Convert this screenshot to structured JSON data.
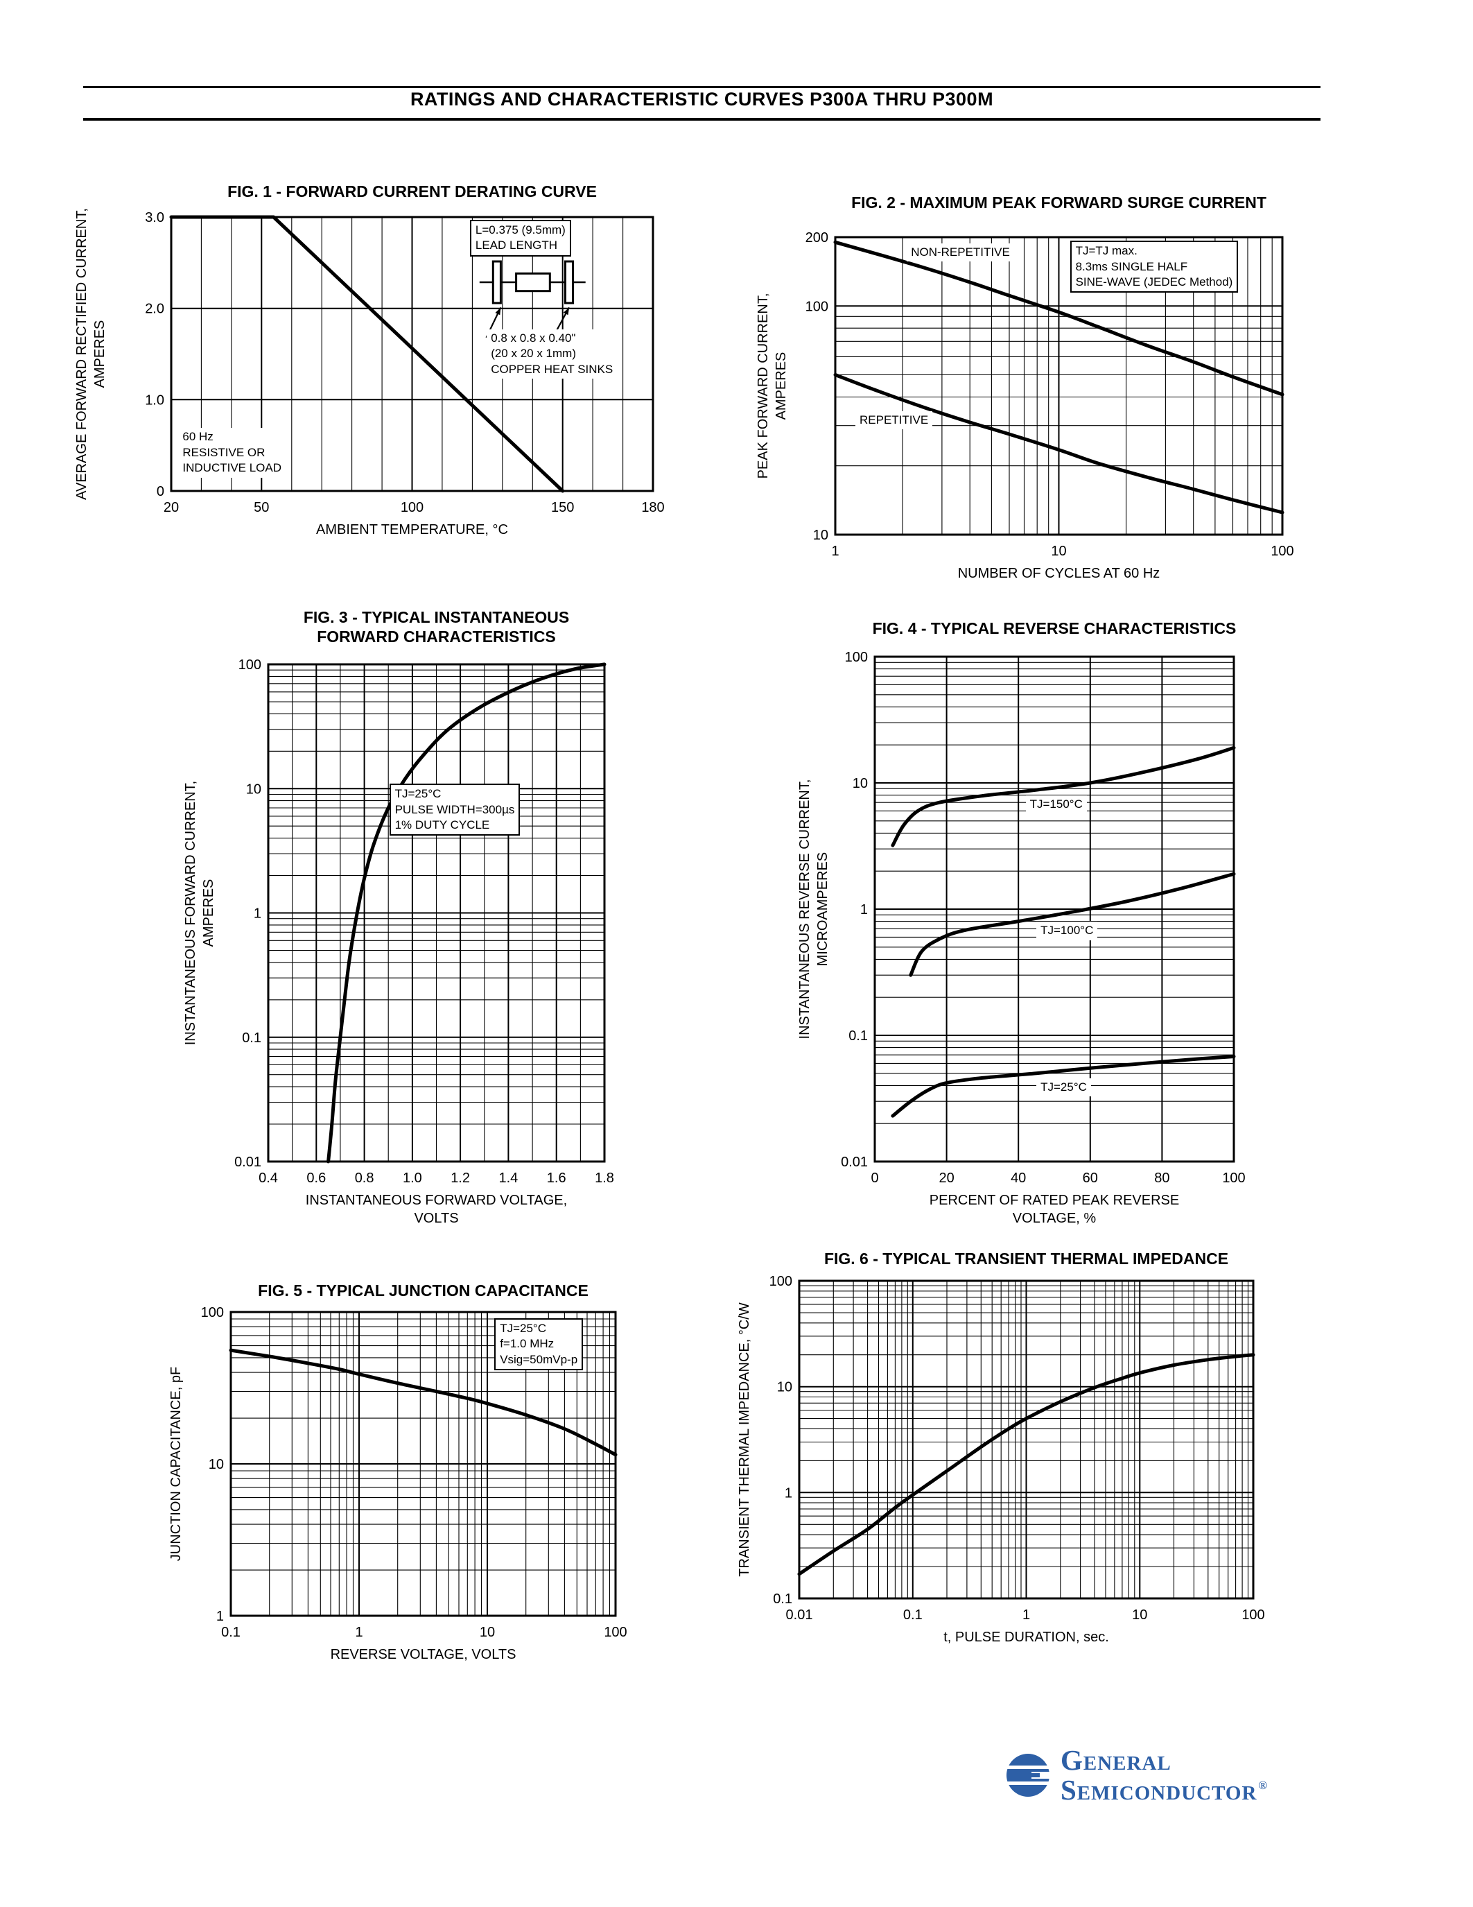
{
  "page": {
    "title": "RATINGS AND CHARACTERISTIC CURVES P300A THRU P300M"
  },
  "logo": {
    "line1": "General",
    "line2": "Semiconductor",
    "reg": "®",
    "color": "#2d5fa6"
  },
  "chart_data": [
    {
      "id": "fig1",
      "type": "line",
      "title": "FIG. 1 - FORWARD CURRENT DERATING CURVE",
      "x": {
        "label": "AMBIENT TEMPERATURE, °C",
        "scale": "linear",
        "min": 20,
        "max": 180,
        "ticks": [
          20,
          50,
          100,
          150,
          180
        ],
        "tick_labels": [
          "20",
          "50",
          "100",
          "150",
          "180"
        ],
        "grid_step": 10
      },
      "y": {
        "label": "AVERAGE FORWARD RECTIFIED CURRENT,\nAMPERES",
        "scale": "linear",
        "min": 0,
        "max": 3,
        "ticks": [
          0,
          1,
          2,
          3
        ],
        "tick_labels": [
          "0",
          "1.0",
          "2.0",
          "3.0"
        ],
        "grid": [
          1,
          2
        ]
      },
      "series": [
        {
          "name": "derating",
          "straight": true,
          "points": [
            [
              20,
              3
            ],
            [
              54,
              3
            ],
            [
              150,
              0
            ]
          ]
        }
      ],
      "annotations": [
        {
          "name": "lead-length-note",
          "type": "box",
          "border": true,
          "fx": 0.62,
          "fy": 0.01,
          "lines": "L=0.375 (9.5mm)\nLEAD LENGTH"
        },
        {
          "name": "heat-sink-diagram",
          "type": "shapes",
          "items": [
            {
              "kind": "line",
              "x1": 0.64,
              "y1": 0.238,
              "x2": 0.86,
              "y2": 0.238,
              "w": 2.5
            },
            {
              "kind": "rect",
              "x": 0.668,
              "y": 0.162,
              "w": 0.016,
              "h": 0.152,
              "fill": "#fff",
              "stroke": 3
            },
            {
              "kind": "rect",
              "x": 0.818,
              "y": 0.162,
              "w": 0.016,
              "h": 0.152,
              "fill": "#fff",
              "stroke": 3
            },
            {
              "kind": "rect",
              "x": 0.716,
              "y": 0.206,
              "w": 0.07,
              "h": 0.064,
              "fill": "#fff",
              "stroke": 3
            },
            {
              "kind": "arrow",
              "x1": 0.654,
              "y1": 0.44,
              "x2": 0.684,
              "y2": 0.33
            },
            {
              "kind": "arrow",
              "x1": 0.792,
              "y1": 0.44,
              "x2": 0.826,
              "y2": 0.33
            }
          ]
        },
        {
          "name": "heat-sink-note",
          "type": "text",
          "fx": 0.655,
          "fy": 0.41,
          "lines": "0.8 x 0.8 x 0.40\"\n(20 x 20 x 1mm)\nCOPPER HEAT SINKS"
        },
        {
          "name": "load-note",
          "type": "text",
          "fx": 0.015,
          "fy": 0.77,
          "lines": "60 Hz\nRESISTIVE OR\nINDUCTIVE LOAD"
        }
      ]
    },
    {
      "id": "fig2",
      "type": "line",
      "title": "FIG. 2 - MAXIMUM PEAK FORWARD SURGE CURRENT",
      "x": {
        "label": "NUMBER OF CYCLES AT 60 Hz",
        "scale": "log",
        "min": 1,
        "max": 100,
        "ticks": [
          1,
          10,
          100
        ],
        "tick_labels": [
          "1",
          "10",
          "100"
        ]
      },
      "y": {
        "label": "PEAK FORWARD CURRENT,\nAMPERES",
        "scale": "log",
        "min": 10,
        "max": 200,
        "ticks": [
          200,
          100,
          10
        ],
        "tick_labels": [
          "200",
          "100",
          "10"
        ]
      },
      "series": [
        {
          "name": "non-repetitive",
          "points": [
            [
              1,
              190
            ],
            [
              1.5,
              170
            ],
            [
              2.5,
              147
            ],
            [
              4,
              127
            ],
            [
              6,
              111
            ],
            [
              10,
              94
            ],
            [
              15,
              81
            ],
            [
              25,
              67
            ],
            [
              40,
              57
            ],
            [
              60,
              49
            ],
            [
              100,
              41
            ]
          ]
        },
        {
          "name": "repetitive",
          "points": [
            [
              1,
              50
            ],
            [
              1.5,
              43
            ],
            [
              2.5,
              36
            ],
            [
              4,
              31
            ],
            [
              6,
              27.5
            ],
            [
              10,
              23.5
            ],
            [
              15,
              20.5
            ],
            [
              25,
              17.8
            ],
            [
              40,
              15.8
            ],
            [
              60,
              14.2
            ],
            [
              100,
              12.5
            ]
          ]
        }
      ],
      "annotations": [
        {
          "name": "non-repetitive-label",
          "type": "text",
          "fx": 0.16,
          "fy": 0.02,
          "lines": "NON-REPETITIVE"
        },
        {
          "name": "surge-conditions-note",
          "type": "box",
          "border": true,
          "fx": 0.525,
          "fy": 0.012,
          "lines": "TJ=TJ max.\n8.3ms SINGLE HALF\nSINE-WAVE (JEDEC Method)"
        },
        {
          "name": "repetitive-label",
          "type": "text",
          "fx": 0.045,
          "fy": 0.585,
          "lines": "REPETITIVE"
        }
      ]
    },
    {
      "id": "fig3",
      "type": "line",
      "title": "FIG. 3 - TYPICAL INSTANTANEOUS\nFORWARD CHARACTERISTICS",
      "x": {
        "label": "INSTANTANEOUS FORWARD VOLTAGE,\nVOLTS",
        "scale": "linear",
        "min": 0.4,
        "max": 1.8,
        "ticks": [
          0.4,
          0.6,
          0.8,
          1,
          1.2,
          1.4,
          1.6,
          1.8
        ],
        "tick_labels": [
          "0.4",
          "0.6",
          "0.8",
          "1.0",
          "1.2",
          "1.4",
          "1.6",
          "1.8"
        ],
        "grid_step": 0.1
      },
      "y": {
        "label": "INSTANTANEOUS FORWARD CURRENT,\nAMPERES",
        "scale": "log",
        "min": 0.01,
        "max": 100,
        "ticks": [
          100,
          10,
          1,
          0.1,
          0.01
        ],
        "tick_labels": [
          "100",
          "10",
          "1",
          "0.1",
          "0.01"
        ]
      },
      "series": [
        {
          "name": "forward-characteristic",
          "points": [
            [
              0.65,
              0.01
            ],
            [
              0.665,
              0.02
            ],
            [
              0.68,
              0.045
            ],
            [
              0.7,
              0.1
            ],
            [
              0.72,
              0.22
            ],
            [
              0.74,
              0.45
            ],
            [
              0.77,
              1
            ],
            [
              0.8,
              1.9
            ],
            [
              0.84,
              3.6
            ],
            [
              0.9,
              7
            ],
            [
              0.97,
              12
            ],
            [
              1.05,
              19
            ],
            [
              1.15,
              30
            ],
            [
              1.28,
              45
            ],
            [
              1.42,
              62
            ],
            [
              1.55,
              78
            ],
            [
              1.68,
              92
            ],
            [
              1.8,
              100
            ]
          ]
        }
      ],
      "annotations": [
        {
          "name": "forward-conditions-note",
          "type": "box",
          "border": true,
          "fx": 0.36,
          "fy": 0.24,
          "lines": "TJ=25°C\nPULSE WIDTH=300µs\n1% DUTY CYCLE"
        }
      ]
    },
    {
      "id": "fig4",
      "type": "line",
      "title": "FIG. 4 - TYPICAL REVERSE CHARACTERISTICS",
      "x": {
        "label": "PERCENT OF RATED PEAK REVERSE\nVOLTAGE, %",
        "scale": "linear",
        "min": 0,
        "max": 100,
        "ticks": [
          0,
          20,
          40,
          60,
          80,
          100
        ],
        "tick_labels": [
          "0",
          "20",
          "40",
          "60",
          "80",
          "100"
        ],
        "grid_step": 20
      },
      "y": {
        "label": "INSTANTANEOUS REVERSE CURRENT,\nMICROAMPERES",
        "scale": "log",
        "min": 0.01,
        "max": 100,
        "ticks": [
          100,
          10,
          1,
          0.1,
          0.01
        ],
        "tick_labels": [
          "100",
          "10",
          "1",
          "0.1",
          "0.01"
        ]
      },
      "series": [
        {
          "name": "tj-150c",
          "points": [
            [
              5,
              3.2
            ],
            [
              8,
              4.6
            ],
            [
              12,
              6
            ],
            [
              18,
              7
            ],
            [
              30,
              7.9
            ],
            [
              45,
              8.8
            ],
            [
              60,
              10
            ],
            [
              75,
              12.2
            ],
            [
              90,
              15.5
            ],
            [
              100,
              19
            ]
          ]
        },
        {
          "name": "tj-100c",
          "points": [
            [
              10,
              0.3
            ],
            [
              13,
              0.46
            ],
            [
              18,
              0.58
            ],
            [
              25,
              0.68
            ],
            [
              40,
              0.8
            ],
            [
              55,
              0.95
            ],
            [
              70,
              1.15
            ],
            [
              85,
              1.45
            ],
            [
              100,
              1.9
            ]
          ]
        },
        {
          "name": "tj-25c",
          "points": [
            [
              5,
              0.023
            ],
            [
              10,
              0.03
            ],
            [
              15,
              0.037
            ],
            [
              20,
              0.042
            ],
            [
              30,
              0.046
            ],
            [
              45,
              0.05
            ],
            [
              60,
              0.055
            ],
            [
              75,
              0.06
            ],
            [
              90,
              0.065
            ],
            [
              100,
              0.068
            ]
          ]
        }
      ],
      "annotations": [
        {
          "name": "tj-150-label",
          "type": "text",
          "fx": 0.42,
          "fy": 0.275,
          "lines": "TJ=150°C"
        },
        {
          "name": "tj-100-label",
          "type": "text",
          "fx": 0.45,
          "fy": 0.525,
          "lines": "TJ=100°C"
        },
        {
          "name": "tj-25-label",
          "type": "text",
          "fx": 0.45,
          "fy": 0.835,
          "lines": "TJ=25°C"
        }
      ]
    },
    {
      "id": "fig5",
      "type": "line",
      "title": "FIG. 5 - TYPICAL JUNCTION CAPACITANCE",
      "x": {
        "label": "REVERSE VOLTAGE, VOLTS",
        "scale": "log",
        "min": 0.1,
        "max": 100,
        "ticks": [
          0.1,
          1,
          10,
          100
        ],
        "tick_labels": [
          "0.1",
          "1",
          "10",
          "100"
        ]
      },
      "y": {
        "label": "JUNCTION CAPACITANCE, pF",
        "scale": "log",
        "min": 1,
        "max": 100,
        "ticks": [
          100,
          10,
          1
        ],
        "tick_labels": [
          "100",
          "10",
          "1"
        ]
      },
      "series": [
        {
          "name": "junction-capacitance",
          "points": [
            [
              0.1,
              56
            ],
            [
              0.2,
              51
            ],
            [
              0.4,
              46
            ],
            [
              0.7,
              42
            ],
            [
              1,
              39
            ],
            [
              2,
              34
            ],
            [
              4,
              30
            ],
            [
              7,
              27
            ],
            [
              10,
              25
            ],
            [
              20,
              21
            ],
            [
              40,
              17
            ],
            [
              70,
              13.5
            ],
            [
              100,
              11.5
            ]
          ]
        }
      ],
      "annotations": [
        {
          "name": "capacitance-conditions-note",
          "type": "box",
          "border": true,
          "fx": 0.685,
          "fy": 0.02,
          "lines": "TJ=25°C\nf=1.0 MHz\nVsig=50mVp-p"
        }
      ]
    },
    {
      "id": "fig6",
      "type": "line",
      "title": "FIG. 6 - TYPICAL TRANSIENT THERMAL IMPEDANCE",
      "x": {
        "label": "t, PULSE DURATION, sec.",
        "scale": "log",
        "min": 0.01,
        "max": 100,
        "ticks": [
          0.01,
          0.1,
          1,
          10,
          100
        ],
        "tick_labels": [
          "0.01",
          "0.1",
          "1",
          "10",
          "100"
        ]
      },
      "y": {
        "label": "TRANSIENT THERMAL IMPEDANCE, °C/W",
        "scale": "log",
        "min": 0.1,
        "max": 100,
        "ticks": [
          100,
          10,
          1,
          0.1
        ],
        "tick_labels": [
          "100",
          "10",
          "1",
          "0.1"
        ]
      },
      "series": [
        {
          "name": "transient-thermal-impedance",
          "points": [
            [
              0.01,
              0.17
            ],
            [
              0.02,
              0.28
            ],
            [
              0.04,
              0.45
            ],
            [
              0.07,
              0.72
            ],
            [
              0.1,
              0.95
            ],
            [
              0.2,
              1.6
            ],
            [
              0.4,
              2.7
            ],
            [
              0.7,
              4
            ],
            [
              1,
              5
            ],
            [
              2,
              7.2
            ],
            [
              4,
              9.8
            ],
            [
              7,
              12
            ],
            [
              10,
              13.5
            ],
            [
              20,
              16
            ],
            [
              40,
              18
            ],
            [
              70,
              19.3
            ],
            [
              100,
              20
            ]
          ]
        }
      ],
      "annotations": []
    }
  ]
}
